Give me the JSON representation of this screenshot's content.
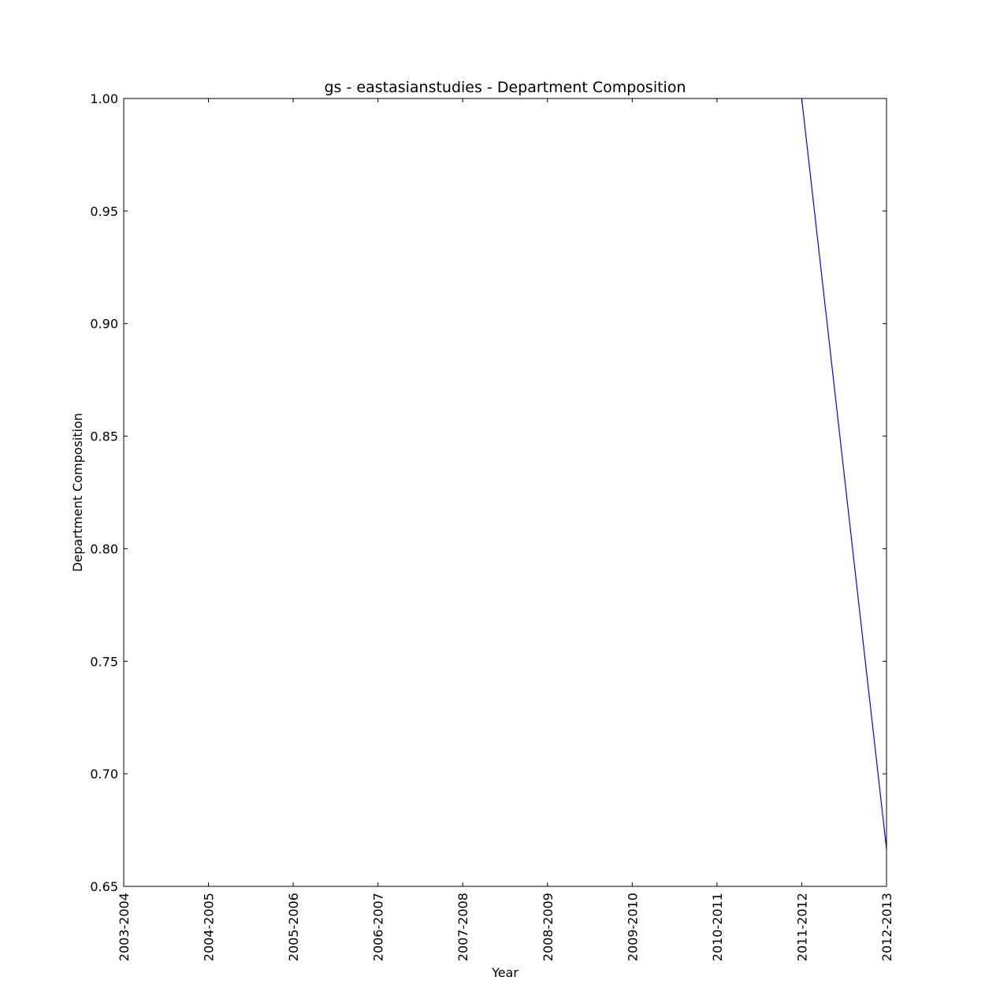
{
  "chart_data": {
    "type": "line",
    "title": "gs - eastasianstudies - Department Composition",
    "xlabel": "Year",
    "ylabel": "Department Composition",
    "categories": [
      "2003-2004",
      "2004-2005",
      "2005-2006",
      "2006-2007",
      "2007-2008",
      "2008-2009",
      "2009-2010",
      "2010-2011",
      "2011-2012",
      "2012-2013"
    ],
    "y_ticks": [
      "0.65",
      "0.70",
      "0.75",
      "0.80",
      "0.85",
      "0.90",
      "0.95",
      "1.00"
    ],
    "ylim": [
      0.65,
      1.0
    ],
    "grid": false,
    "series": [
      {
        "color": "#0000ff",
        "values": [
          null,
          null,
          null,
          null,
          null,
          null,
          null,
          null,
          1.0,
          0.6667
        ]
      }
    ]
  }
}
